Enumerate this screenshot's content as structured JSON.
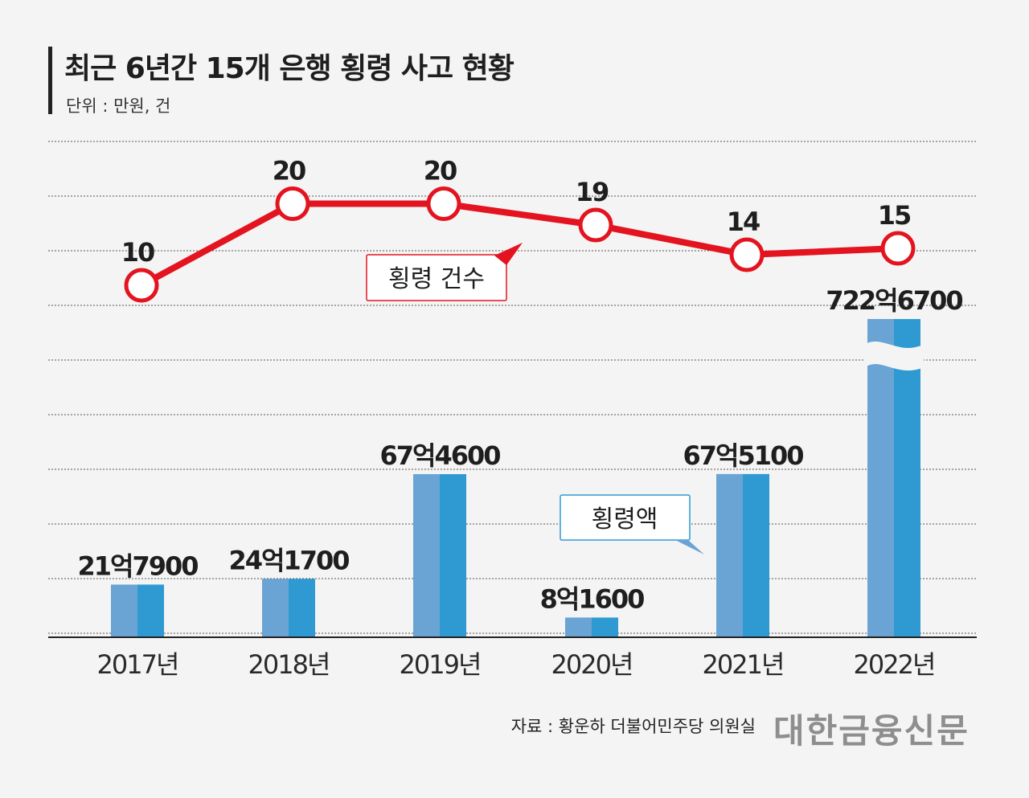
{
  "header": {
    "title": "최근 6년간 15개 은행 횡령 사고 현황",
    "unit": "단위 : 만원, 건"
  },
  "footer": {
    "source": "자료 : 황운하 더불어민주당 의원실",
    "logo": "대한금융신문"
  },
  "colors": {
    "bar_left": "#69a4d4",
    "bar_right": "#2f9ad2",
    "line": "#e3141f",
    "grid": "#555555",
    "axis": "#222222"
  },
  "chart_data": {
    "type": "bar",
    "categories": [
      "2017년",
      "2018년",
      "2019년",
      "2020년",
      "2021년",
      "2022년"
    ],
    "series": [
      {
        "name": "횡령액",
        "type": "bar",
        "values": [
          217900,
          241700,
          674600,
          81600,
          675100,
          7226700
        ],
        "labels": [
          "21억7900",
          "24억1700",
          "67억4600",
          "8억1600",
          "67억5100",
          "722억6700"
        ],
        "axis_break_on": "2022년"
      },
      {
        "name": "횡령 건수",
        "type": "line",
        "values": [
          10,
          20,
          20,
          19,
          14,
          15
        ],
        "labels": [
          "10",
          "20",
          "20",
          "19",
          "14",
          "15"
        ]
      }
    ],
    "grid": true,
    "legend": "callouts"
  }
}
